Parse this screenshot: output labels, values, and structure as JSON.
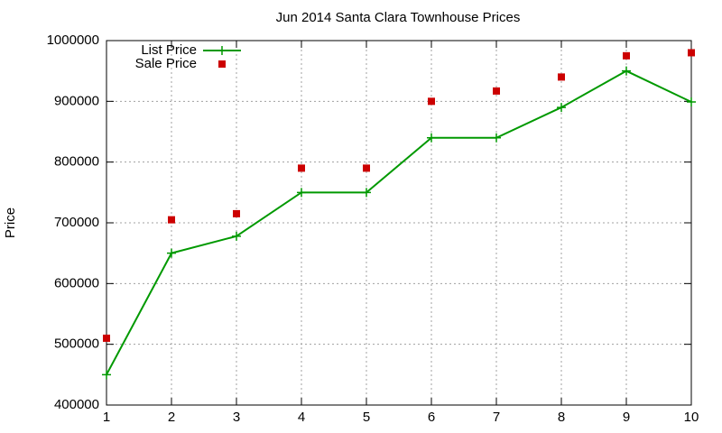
{
  "chart_data": {
    "type": "line",
    "title": "Jun 2014 Santa Clara Townhouse Prices",
    "y_label": "Price",
    "x": [
      1,
      2,
      3,
      4,
      5,
      6,
      7,
      8,
      9,
      10
    ],
    "series": [
      {
        "name": "List Price",
        "color": "#009900",
        "mode": "linespoints",
        "values": [
          450000,
          650000,
          678000,
          750000,
          750000,
          840000,
          840000,
          890000,
          950000,
          899000
        ]
      },
      {
        "name": "Sale Price",
        "color": "#cc0000",
        "mode": "points",
        "values": [
          510000,
          705000,
          715000,
          790000,
          790000,
          900000,
          917000,
          940000,
          975000,
          980000
        ]
      }
    ],
    "xlim": [
      1,
      10
    ],
    "xticks": [
      1,
      2,
      3,
      4,
      5,
      6,
      7,
      8,
      9,
      10
    ],
    "ylim": [
      400000,
      1000000
    ],
    "yticks": [
      400000,
      500000,
      600000,
      700000,
      800000,
      900000,
      1000000
    ],
    "grid": true,
    "legend": "top-left"
  }
}
